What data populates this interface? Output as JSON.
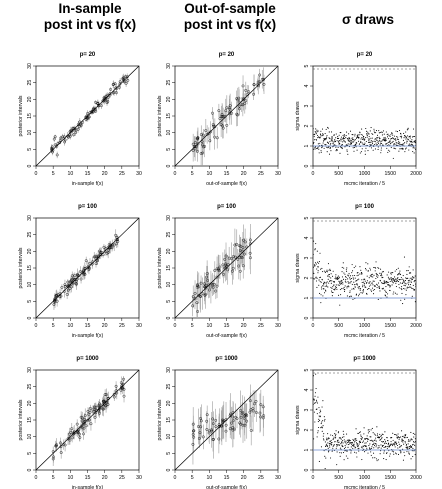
{
  "column_titles": [
    {
      "line1": "In-sample",
      "line2": "post int vs f(x)"
    },
    {
      "line1": "Out-of-sample",
      "line2": "post int vs f(x)"
    },
    {
      "line1": "σ draws",
      "line2": ""
    }
  ],
  "chart_data": [
    {
      "id": "in-p20",
      "type": "scatter",
      "subtype": "interval-vs-truth",
      "title": "p= 20",
      "xlabel": "in-sample f(x)",
      "ylabel": "posterior intervals",
      "xlim": [
        0,
        30
      ],
      "ylim": [
        0,
        30
      ],
      "xticks": [
        0,
        5,
        10,
        15,
        20,
        25,
        30
      ],
      "yticks": [
        0,
        5,
        10,
        15,
        20,
        25,
        30
      ],
      "reference_line": "y=x",
      "points": {
        "x_range": [
          4,
          27
        ],
        "y_at": "x",
        "y_noise": 0.9,
        "interval_halfwidth": 0.9,
        "count": 100,
        "seed": 11
      }
    },
    {
      "id": "out-p20",
      "type": "scatter",
      "subtype": "interval-vs-truth",
      "title": "p= 20",
      "xlabel": "out-of-sample f(x)",
      "ylabel": "posterior intervals",
      "xlim": [
        0,
        30
      ],
      "ylim": [
        0,
        30
      ],
      "xticks": [
        0,
        5,
        10,
        15,
        20,
        25,
        30
      ],
      "yticks": [
        0,
        5,
        10,
        15,
        20,
        25,
        30
      ],
      "reference_line": "y=x",
      "points": {
        "x_range": [
          5,
          26
        ],
        "y_at": "x",
        "y_noise": 2.0,
        "interval_halfwidth": 2.8,
        "count": 80,
        "seed": 23
      }
    },
    {
      "id": "sigma-p20",
      "type": "scatter",
      "subtype": "trace",
      "title": "p= 20",
      "xlabel": "mcmc iteration / 5",
      "ylabel": "sigma draws",
      "xlim": [
        0,
        2000
      ],
      "ylim": [
        0,
        5
      ],
      "xticks": [
        0,
        500,
        1000,
        1500,
        2000
      ],
      "yticks": [
        0,
        1,
        2,
        3,
        4,
        5
      ],
      "hline_dashed": 4.85,
      "hline_solid": 1.0,
      "trace": {
        "mean": 1.25,
        "spread": 0.28,
        "burn_mean": 1.3,
        "burn_spread": 0.3,
        "burn_len": 30,
        "count": 1000,
        "seed": 37
      }
    },
    {
      "id": "in-p100",
      "type": "scatter",
      "subtype": "interval-vs-truth",
      "title": "p= 100",
      "xlabel": "in-sample f(x)",
      "ylabel": "posterior intervals",
      "xlim": [
        0,
        30
      ],
      "ylim": [
        0,
        30
      ],
      "xticks": [
        0,
        5,
        10,
        15,
        20,
        25,
        30
      ],
      "yticks": [
        0,
        5,
        10,
        15,
        20,
        25,
        30
      ],
      "reference_line": "y=x",
      "points": {
        "x_range": [
          5,
          24
        ],
        "y_at": "x",
        "y_noise": 1.0,
        "interval_halfwidth": 1.3,
        "count": 100,
        "seed": 41
      }
    },
    {
      "id": "out-p100",
      "type": "scatter",
      "subtype": "interval-vs-truth",
      "title": "p= 100",
      "xlabel": "out-of-sample f(x)",
      "ylabel": "posterior intervals",
      "xlim": [
        0,
        30
      ],
      "ylim": [
        0,
        30
      ],
      "xticks": [
        0,
        5,
        10,
        15,
        20,
        25,
        30
      ],
      "yticks": [
        0,
        5,
        10,
        15,
        20,
        25,
        30
      ],
      "reference_line": "y=x",
      "points": {
        "x_range": [
          5,
          22
        ],
        "y_at": "x",
        "y_noise": 2.3,
        "interval_halfwidth": 3.6,
        "count": 80,
        "seed": 53
      }
    },
    {
      "id": "sigma-p100",
      "type": "scatter",
      "subtype": "trace",
      "title": "p= 100",
      "xlabel": "mcmc iteration / 5",
      "ylabel": "sigma draws",
      "xlim": [
        0,
        2000
      ],
      "ylim": [
        0,
        5
      ],
      "xticks": [
        0,
        500,
        1000,
        1500,
        2000
      ],
      "yticks": [
        0,
        1,
        2,
        3,
        4,
        5
      ],
      "hline_dashed": 4.85,
      "hline_solid": 1.0,
      "trace": {
        "mean": 1.75,
        "spread": 0.38,
        "burn_mean": 2.9,
        "burn_spread": 0.6,
        "burn_len": 40,
        "count": 1000,
        "seed": 67
      }
    },
    {
      "id": "in-p1000",
      "type": "scatter",
      "subtype": "interval-vs-truth",
      "title": "p= 1000",
      "xlabel": "in-sample f(x)",
      "ylabel": "posterior intervals",
      "xlim": [
        0,
        30
      ],
      "ylim": [
        0,
        30
      ],
      "xticks": [
        0,
        5,
        10,
        15,
        20,
        25,
        30
      ],
      "yticks": [
        0,
        5,
        10,
        15,
        20,
        25,
        30
      ],
      "reference_line": "y=x",
      "points": {
        "x_range": [
          5,
          26
        ],
        "y_at": "x",
        "y_noise": 1.2,
        "interval_halfwidth": 1.6,
        "count": 100,
        "seed": 71
      }
    },
    {
      "id": "out-p1000",
      "type": "scatter",
      "subtype": "interval-vs-truth",
      "title": "p= 1000",
      "xlabel": "out-of-sample f(x)",
      "ylabel": "posterior intervals",
      "xlim": [
        0,
        30
      ],
      "ylim": [
        0,
        30
      ],
      "xticks": [
        0,
        5,
        10,
        15,
        20,
        25,
        30
      ],
      "yticks": [
        0,
        5,
        10,
        15,
        20,
        25,
        30
      ],
      "reference_line": "y=x",
      "points": {
        "x_range": [
          5,
          26
        ],
        "y_at": "flat",
        "flat_center": 14,
        "flat_slope": 0.35,
        "y_noise": 2.0,
        "interval_halfwidth": 4.5,
        "count": 80,
        "seed": 83
      }
    },
    {
      "id": "sigma-p1000",
      "type": "scatter",
      "subtype": "trace",
      "title": "p= 1000",
      "xlabel": "mcmc iteration / 5",
      "ylabel": "sigma draws",
      "xlim": [
        0,
        2000
      ],
      "ylim": [
        0,
        5
      ],
      "xticks": [
        0,
        500,
        1000,
        1500,
        2000
      ],
      "yticks": [
        0,
        1,
        2,
        3,
        4,
        5
      ],
      "hline_dashed": 4.85,
      "hline_solid": 1.0,
      "trace": {
        "mean": 1.3,
        "spread": 0.35,
        "burn_mean": 3.4,
        "burn_spread": 0.9,
        "burn_len": 60,
        "count": 1000,
        "seed": 97
      }
    }
  ],
  "colors": {
    "interval": "#a9a9a9",
    "point": "#000000",
    "axis": "#000000",
    "blue_mean": "#6688cc"
  }
}
